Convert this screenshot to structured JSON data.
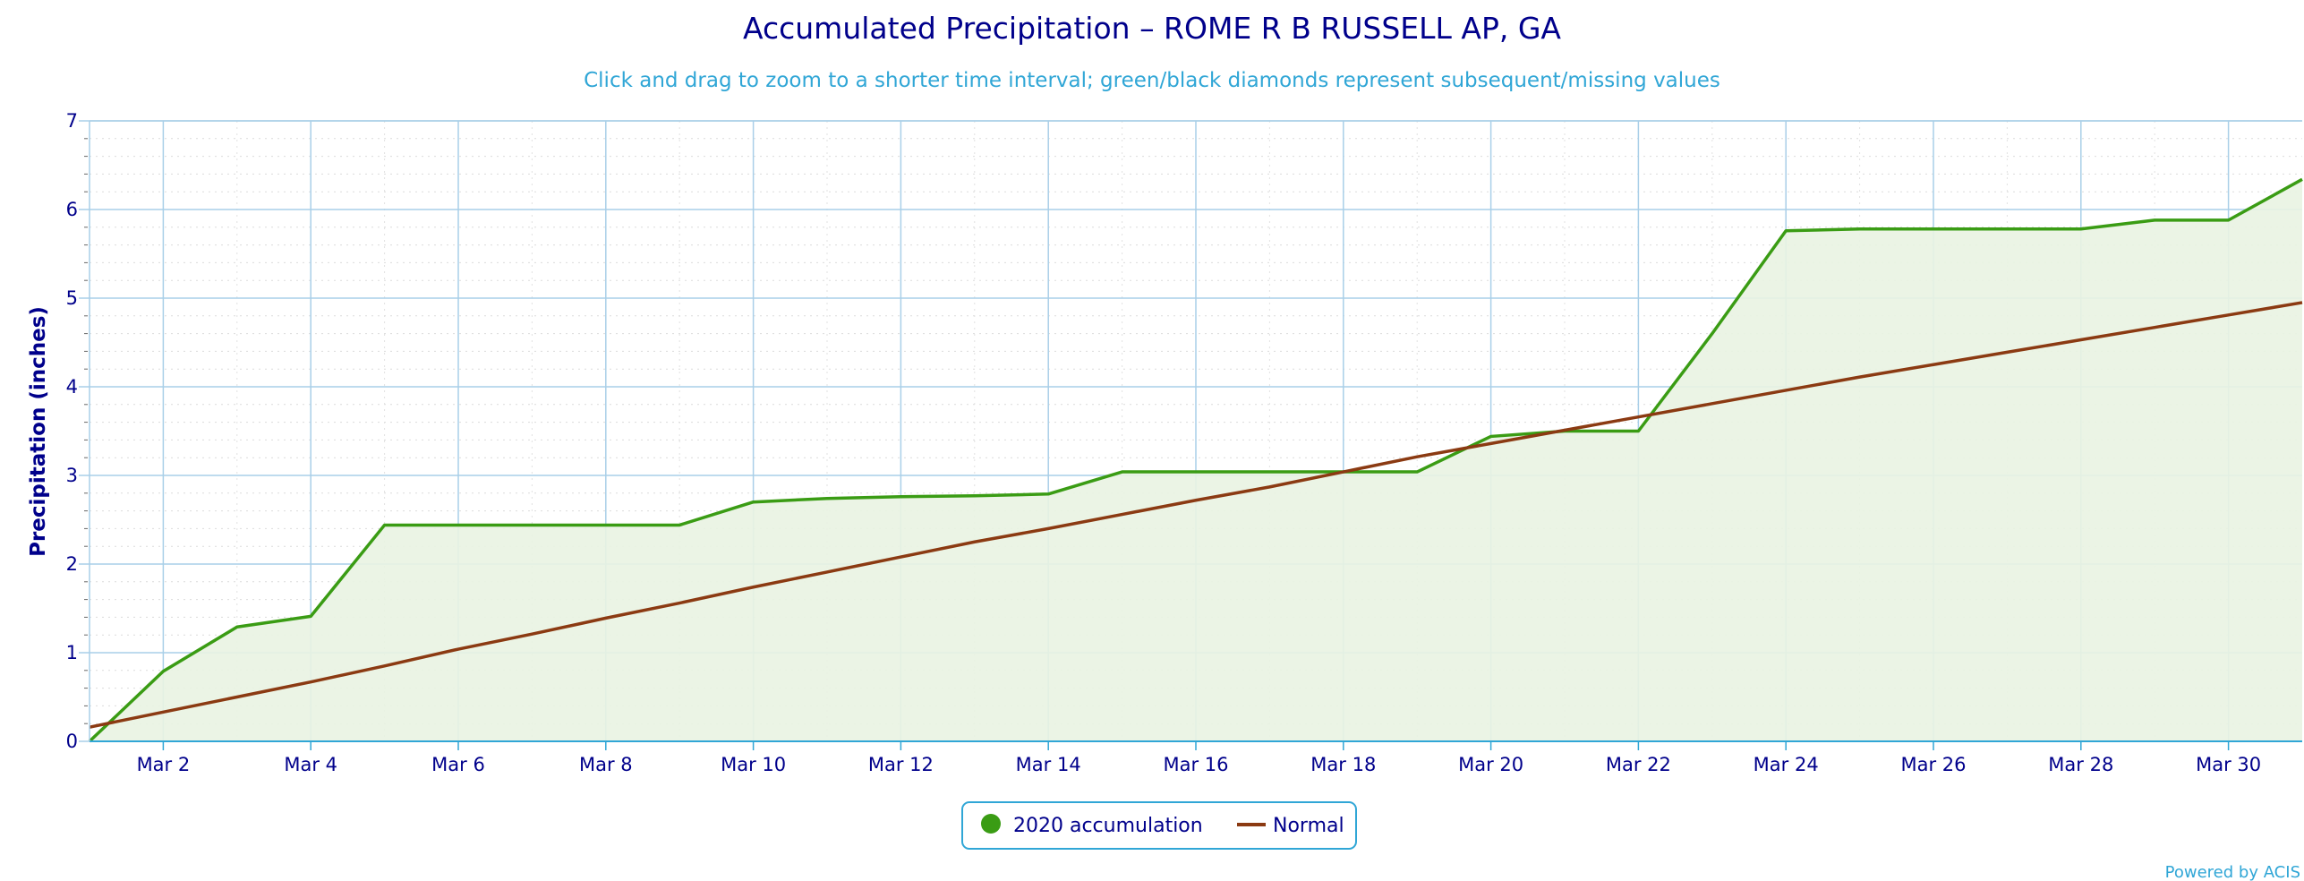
{
  "chart_data": {
    "type": "area",
    "title": "Accumulated Precipitation – ROME R B RUSSELL AP, GA",
    "subtitle": "Click and drag to zoom to a shorter time interval; green/black diamonds represent subsequent/missing values",
    "ylabel": "Precipitation (inches)",
    "xlabel": "",
    "xlim": [
      1,
      31
    ],
    "ylim": [
      0,
      7
    ],
    "y_ticks": [
      0,
      1,
      2,
      3,
      4,
      5,
      6,
      7
    ],
    "x_ticks": [
      {
        "day": 2,
        "label": "Mar 2"
      },
      {
        "day": 4,
        "label": "Mar 4"
      },
      {
        "day": 6,
        "label": "Mar 6"
      },
      {
        "day": 8,
        "label": "Mar 8"
      },
      {
        "day": 10,
        "label": "Mar 10"
      },
      {
        "day": 12,
        "label": "Mar 12"
      },
      {
        "day": 14,
        "label": "Mar 14"
      },
      {
        "day": 16,
        "label": "Mar 16"
      },
      {
        "day": 18,
        "label": "Mar 18"
      },
      {
        "day": 20,
        "label": "Mar 20"
      },
      {
        "day": 22,
        "label": "Mar 22"
      },
      {
        "day": 24,
        "label": "Mar 24"
      },
      {
        "day": 26,
        "label": "Mar 26"
      },
      {
        "day": 28,
        "label": "Mar 28"
      },
      {
        "day": 30,
        "label": "Mar 30"
      }
    ],
    "grid": true,
    "legend_position": "bottom-center",
    "series": [
      {
        "name": "2020 accumulation",
        "color": "#3a9c14",
        "fill": "#e9f3e2",
        "style": "filled-area",
        "x": [
          1,
          2,
          3,
          4,
          5,
          6,
          7,
          8,
          9,
          10,
          11,
          12,
          13,
          14,
          15,
          16,
          17,
          18,
          19,
          20,
          21,
          22,
          23,
          24,
          25,
          26,
          27,
          28,
          29,
          30,
          31
        ],
        "values": [
          0.0,
          0.79,
          1.29,
          1.41,
          2.44,
          2.44,
          2.44,
          2.44,
          2.44,
          2.7,
          2.74,
          2.76,
          2.77,
          2.79,
          3.04,
          3.04,
          3.04,
          3.04,
          3.04,
          3.44,
          3.5,
          3.5,
          4.6,
          5.76,
          5.78,
          5.78,
          5.78,
          5.78,
          5.88,
          5.88,
          6.34
        ]
      },
      {
        "name": "Normal",
        "color": "#8b3a12",
        "style": "line",
        "x": [
          1,
          2,
          3,
          4,
          5,
          6,
          7,
          8,
          9,
          10,
          11,
          12,
          13,
          14,
          15,
          16,
          17,
          18,
          19,
          20,
          21,
          22,
          23,
          24,
          25,
          26,
          27,
          28,
          29,
          30,
          31
        ],
        "values": [
          0.16,
          0.33,
          0.5,
          0.67,
          0.85,
          1.04,
          1.21,
          1.39,
          1.56,
          1.74,
          1.91,
          2.08,
          2.25,
          2.4,
          2.56,
          2.72,
          2.87,
          3.04,
          3.21,
          3.36,
          3.51,
          3.66,
          3.81,
          3.96,
          4.11,
          4.25,
          4.39,
          4.53,
          4.67,
          4.81,
          4.95
        ]
      }
    ]
  },
  "credit": "Powered by ACIS"
}
